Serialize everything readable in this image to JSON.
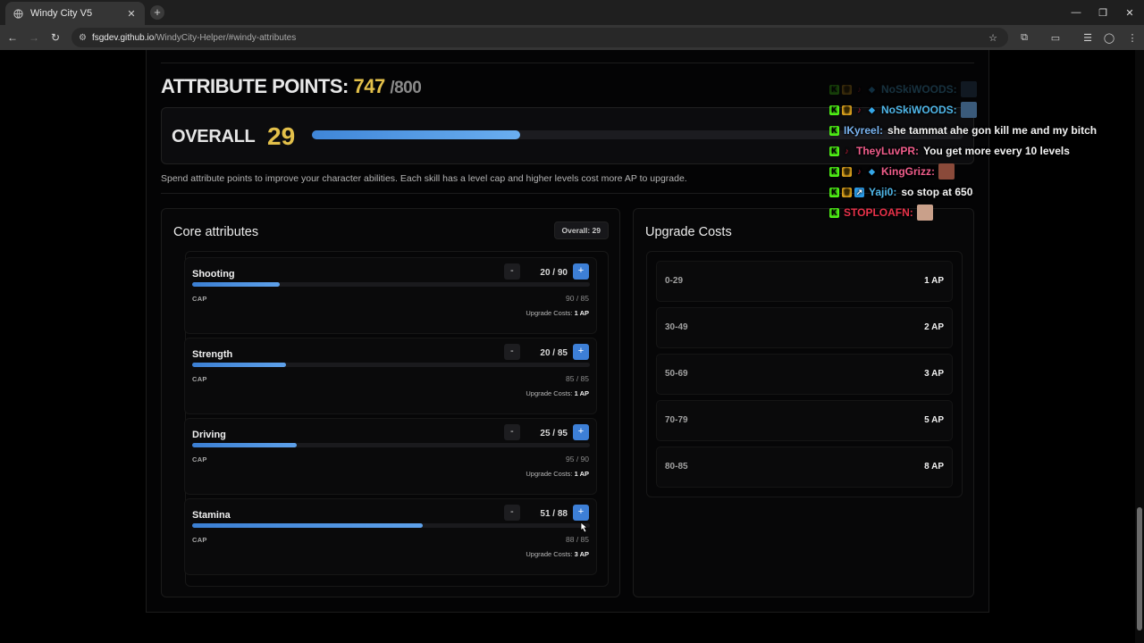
{
  "browser": {
    "tab_title": "Windy City V5",
    "url_host": "fsgdev.github.io",
    "url_path": "/WindyCity-Helper/#windy-attributes"
  },
  "header": {
    "ap_label": "ATTRIBUTE POINTS:",
    "ap_current": "747",
    "ap_separator": "/",
    "ap_max": "800",
    "overall_label": "OVERALL",
    "overall_value": "29",
    "overall_progress_fraction": 0.32,
    "description": "Spend attribute points to improve your character abilities. Each skill has a level cap and higher levels cost more AP to upgrade."
  },
  "core": {
    "title": "Core attributes",
    "overall_badge": "Overall: 29",
    "minus_label": "-",
    "plus_label": "+",
    "cap_label": "CAP",
    "upgrade_label": "Upgrade Costs:",
    "attributes": [
      {
        "name": "Shooting",
        "value": "20 / 90",
        "cap": "90 / 85",
        "cost": "1 AP",
        "progress_fraction": 0.22
      },
      {
        "name": "Strength",
        "value": "20 / 85",
        "cap": "85 / 85",
        "cost": "1 AP",
        "progress_fraction": 0.235
      },
      {
        "name": "Driving",
        "value": "25 / 95",
        "cap": "95 / 90",
        "cost": "1 AP",
        "progress_fraction": 0.263
      },
      {
        "name": "Stamina",
        "value": "51 / 88",
        "cap": "88 / 85",
        "cost": "3 AP",
        "progress_fraction": 0.58
      }
    ]
  },
  "costs": {
    "title": "Upgrade Costs",
    "rows": [
      {
        "range": "0-29",
        "ap": "1 AP"
      },
      {
        "range": "30-49",
        "ap": "2 AP"
      },
      {
        "range": "50-69",
        "ap": "3 AP"
      },
      {
        "range": "70-79",
        "ap": "5 AP"
      },
      {
        "range": "80-85",
        "ap": "8 AP"
      }
    ]
  },
  "chat": [
    {
      "user": "NoSkiWOODS:",
      "message": "",
      "color": "#4fb6e8",
      "faded": true
    },
    {
      "user": "NoSkiWOODS:",
      "message": "",
      "color": "#4fb6e8",
      "faded": false
    },
    {
      "user": "IKyreel:",
      "message": "she tammat ahe gon kill me and my bitch",
      "color": "#7ab4f0",
      "faded": false
    },
    {
      "user": "TheyLuvPR:",
      "message": "You get more every 10 levels",
      "color": "#f05d8b",
      "faded": false
    },
    {
      "user": "KingGrizz:",
      "message": "",
      "color": "#f05d8b",
      "faded": false
    },
    {
      "user": "Yaji0:",
      "message": "so stop at 650",
      "color": "#4fb6e8",
      "faded": false
    },
    {
      "user": "STOPLOAFN:",
      "message": "",
      "color": "#e8324a",
      "faded": false
    }
  ]
}
